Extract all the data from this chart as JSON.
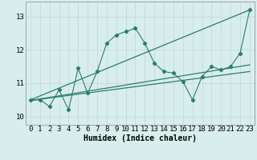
{
  "xlabel": "Humidex (Indice chaleur)",
  "x_values": [
    0,
    1,
    2,
    3,
    4,
    5,
    6,
    7,
    8,
    9,
    10,
    11,
    12,
    13,
    14,
    15,
    16,
    17,
    18,
    19,
    20,
    21,
    22,
    23
  ],
  "line1_y": [
    10.5,
    10.5,
    10.3,
    10.8,
    10.2,
    11.45,
    10.7,
    11.35,
    12.2,
    12.45,
    12.55,
    12.65,
    12.2,
    11.6,
    11.35,
    11.3,
    11.05,
    10.5,
    11.2,
    11.5,
    11.4,
    11.5,
    11.9,
    13.2
  ],
  "trend1_x": [
    0,
    23
  ],
  "trend1_y": [
    10.5,
    13.2
  ],
  "trend2_x": [
    0,
    23
  ],
  "trend2_y": [
    10.48,
    11.35
  ],
  "trend3_x": [
    0,
    23
  ],
  "trend3_y": [
    10.48,
    11.55
  ],
  "ylim": [
    9.75,
    13.45
  ],
  "xlim": [
    -0.5,
    23.5
  ],
  "yticks": [
    10,
    11,
    12,
    13
  ],
  "xticks": [
    0,
    1,
    2,
    3,
    4,
    5,
    6,
    7,
    8,
    9,
    10,
    11,
    12,
    13,
    14,
    15,
    16,
    17,
    18,
    19,
    20,
    21,
    22,
    23
  ],
  "line_color": "#2a7d6e",
  "bg_color": "#d8eeec",
  "grid_color": "#c0d8d8",
  "xlabel_fontsize": 7,
  "tick_fontsize": 6.5,
  "fig_width": 3.2,
  "fig_height": 2.0,
  "dpi": 100
}
